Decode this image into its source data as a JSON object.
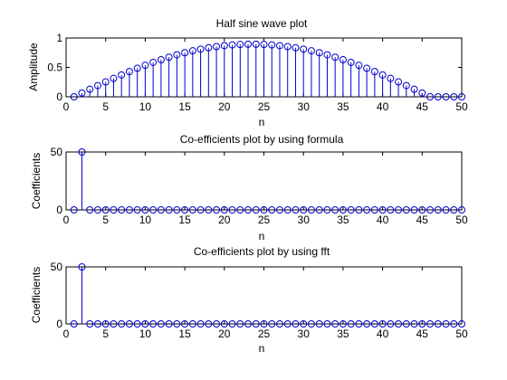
{
  "colors": {
    "stem": "#0000cc",
    "marker": "#0000cc",
    "axes": "#000000",
    "background": "#ffffff"
  },
  "chart_data": [
    {
      "type": "stem",
      "title": "Half sine wave plot",
      "xlabel": "n",
      "ylabel": "Amplitude",
      "xlim": [
        0,
        50
      ],
      "ylim": [
        0,
        1
      ],
      "xticks": [
        "0",
        "5",
        "10",
        "15",
        "20",
        "25",
        "30",
        "35",
        "40",
        "45",
        "50"
      ],
      "yticks": [
        "0",
        "0.5",
        "1"
      ],
      "series": [
        {
          "x": [
            1,
            2,
            3,
            4,
            5,
            6,
            7,
            8,
            9,
            10,
            11,
            12,
            13,
            14,
            15,
            16,
            17,
            18,
            19,
            20,
            21,
            22,
            23,
            24,
            25,
            26,
            27,
            28,
            29,
            30,
            31,
            32,
            33,
            34,
            35,
            36,
            37,
            38,
            39,
            40,
            41,
            42,
            43,
            44,
            45,
            46,
            47,
            48,
            49,
            50
          ],
          "values": [
            0,
            0.064,
            0.128,
            0.191,
            0.253,
            0.313,
            0.372,
            0.429,
            0.484,
            0.536,
            0.585,
            0.631,
            0.674,
            0.714,
            0.75,
            0.782,
            0.81,
            0.834,
            0.854,
            0.87,
            0.882,
            0.89,
            0.894,
            0.894,
            0.89,
            0.882,
            0.87,
            0.854,
            0.834,
            0.81,
            0.782,
            0.75,
            0.714,
            0.674,
            0.631,
            0.585,
            0.536,
            0.484,
            0.429,
            0.372,
            0.313,
            0.253,
            0.191,
            0.128,
            0.064,
            0.0,
            0.0,
            0.0,
            0.0,
            0.0
          ]
        }
      ]
    },
    {
      "type": "stem",
      "title": "Co-efficients plot by using formula",
      "xlabel": "n",
      "ylabel": "Coefficients",
      "xlim": [
        0,
        50
      ],
      "ylim": [
        0,
        50
      ],
      "xticks": [
        "0",
        "5",
        "10",
        "15",
        "20",
        "25",
        "30",
        "35",
        "40",
        "45",
        "50"
      ],
      "yticks": [
        "0",
        "50"
      ],
      "series": [
        {
          "x": [
            1,
            2,
            3,
            4,
            5,
            6,
            7,
            8,
            9,
            10,
            11,
            12,
            13,
            14,
            15,
            16,
            17,
            18,
            19,
            20,
            21,
            22,
            23,
            24,
            25,
            26,
            27,
            28,
            29,
            30,
            31,
            32,
            33,
            34,
            35,
            36,
            37,
            38,
            39,
            40,
            41,
            42,
            43,
            44,
            45,
            46,
            47,
            48,
            49,
            50
          ],
          "values": [
            0,
            50,
            0,
            0,
            0,
            0,
            0,
            0,
            0,
            0,
            0,
            0,
            0,
            0,
            0,
            0,
            0,
            0,
            0,
            0,
            0,
            0,
            0,
            0,
            0,
            0,
            0,
            0,
            0,
            0,
            0,
            0,
            0,
            0,
            0,
            0,
            0,
            0,
            0,
            0,
            0,
            0,
            0,
            0,
            0,
            0,
            0,
            0,
            0,
            0
          ]
        }
      ]
    },
    {
      "type": "stem",
      "title": "Co-efficients plot by using fft",
      "xlabel": "n",
      "ylabel": "Coefficients",
      "xlim": [
        0,
        50
      ],
      "ylim": [
        0,
        50
      ],
      "xticks": [
        "0",
        "5",
        "10",
        "15",
        "20",
        "25",
        "30",
        "35",
        "40",
        "45",
        "50"
      ],
      "yticks": [
        "0",
        "50"
      ],
      "series": [
        {
          "x": [
            1,
            2,
            3,
            4,
            5,
            6,
            7,
            8,
            9,
            10,
            11,
            12,
            13,
            14,
            15,
            16,
            17,
            18,
            19,
            20,
            21,
            22,
            23,
            24,
            25,
            26,
            27,
            28,
            29,
            30,
            31,
            32,
            33,
            34,
            35,
            36,
            37,
            38,
            39,
            40,
            41,
            42,
            43,
            44,
            45,
            46,
            47,
            48,
            49,
            50
          ],
          "values": [
            0,
            50,
            0,
            0,
            0,
            0,
            0,
            0,
            0,
            0,
            0,
            0,
            0,
            0,
            0,
            0,
            0,
            0,
            0,
            0,
            0,
            0,
            0,
            0,
            0,
            0,
            0,
            0,
            0,
            0,
            0,
            0,
            0,
            0,
            0,
            0,
            0,
            0,
            0,
            0,
            0,
            0,
            0,
            0,
            0,
            0,
            0,
            0,
            0,
            0
          ]
        }
      ]
    }
  ]
}
